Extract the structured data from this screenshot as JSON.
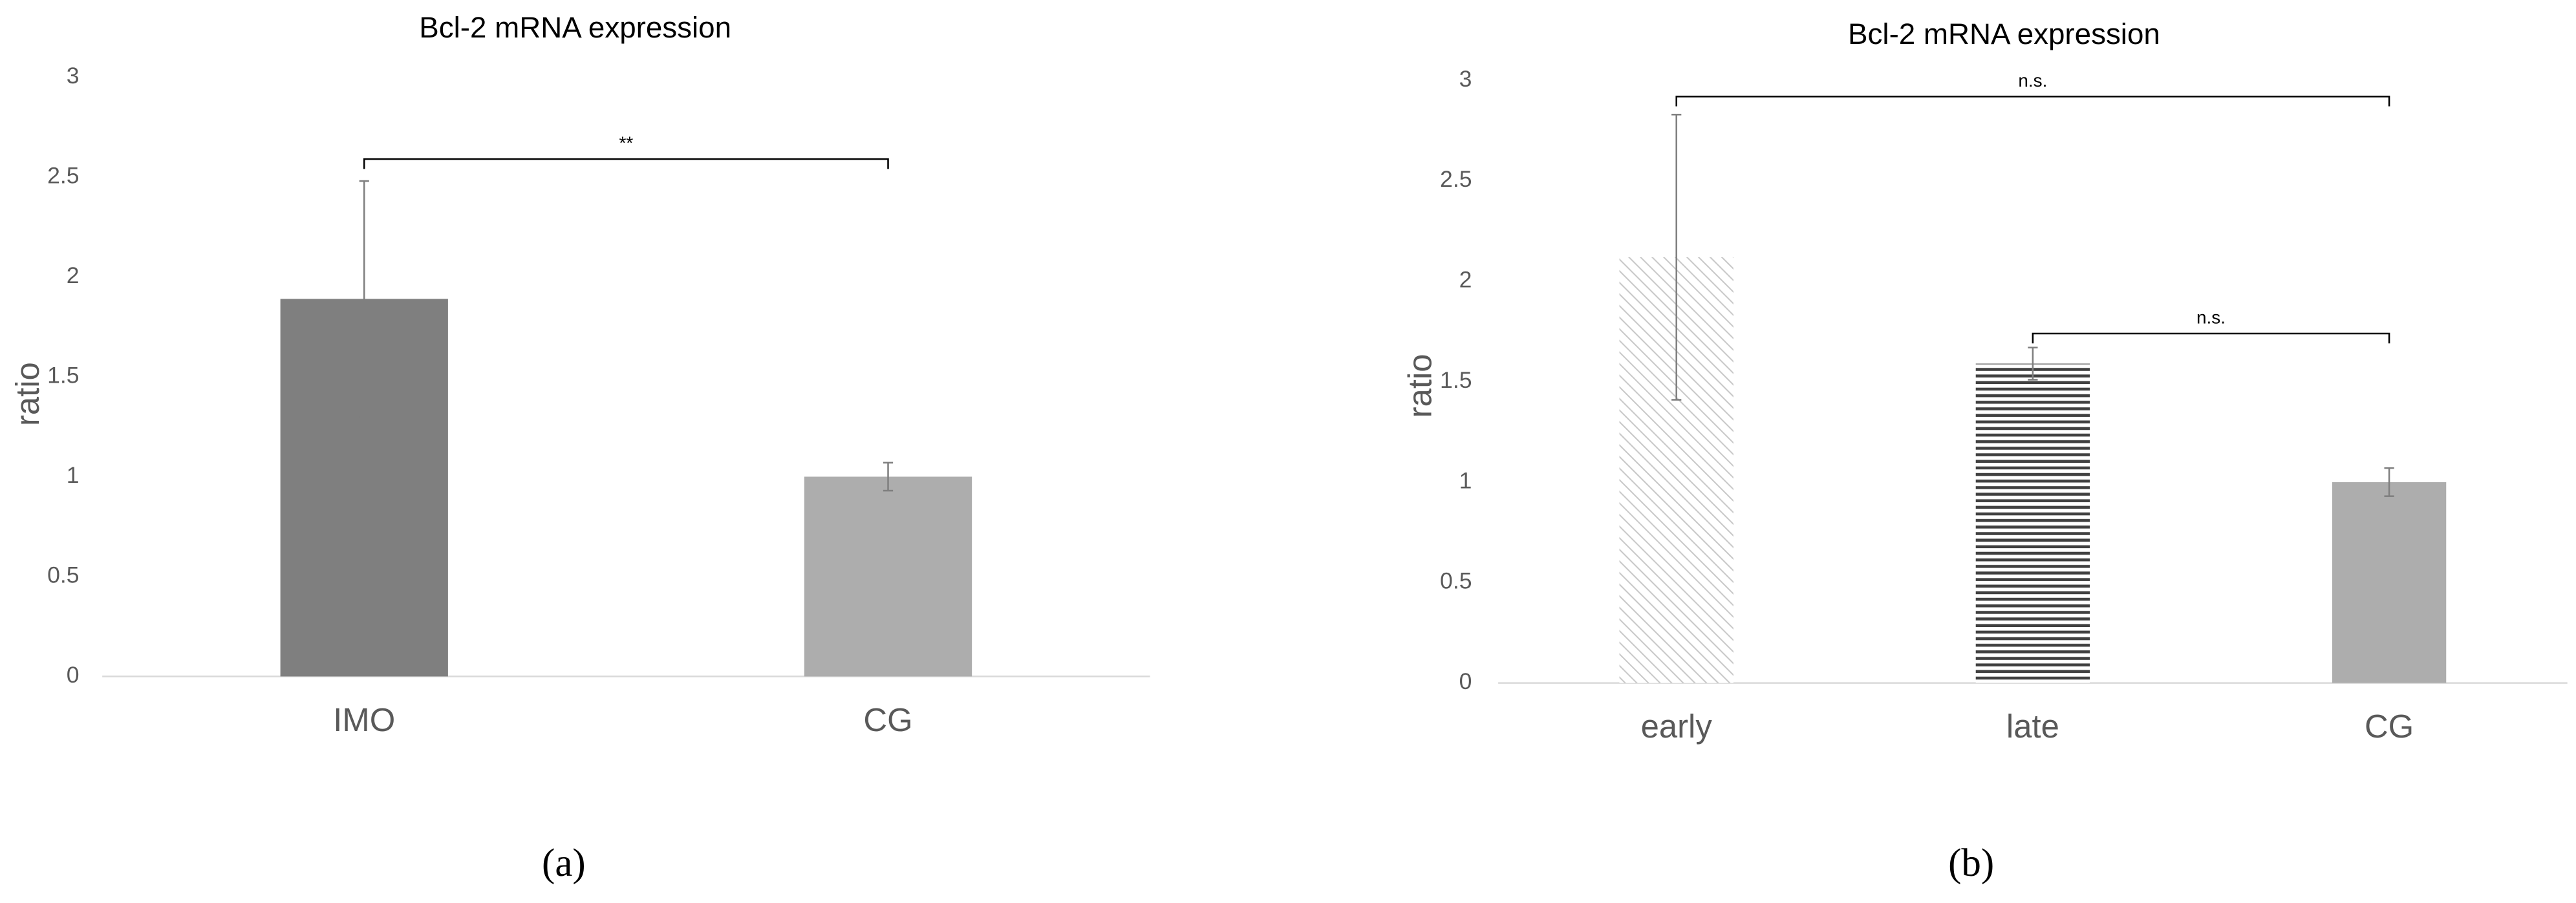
{
  "chart_data": [
    {
      "type": "bar",
      "title": "Bcl-2 mRNA expression",
      "ylabel": "ratio",
      "panel_label": "(a)",
      "categories": [
        "IMO",
        "CG"
      ],
      "values": [
        1.89,
        1.0
      ],
      "errors": [
        0.59,
        0.07
      ],
      "colors": [
        "#7f7f7f",
        "#adadad"
      ],
      "patterns": [
        "solid",
        "solid"
      ],
      "ylim": [
        0,
        3
      ],
      "yticks": [
        0,
        0.5,
        1,
        1.5,
        2,
        2.5,
        3
      ],
      "significance": [
        {
          "from": 0,
          "to": 1,
          "y": 2.59,
          "label": "**"
        }
      ]
    },
    {
      "type": "bar",
      "title": "Bcl-2 mRNA expression",
      "ylabel": "ratio",
      "panel_label": "(b)",
      "categories": [
        "early",
        "late",
        "CG"
      ],
      "values": [
        2.12,
        1.59,
        1.0
      ],
      "errors": [
        0.71,
        0.08,
        0.07
      ],
      "colors": [
        "#c8c8c8",
        "#404040",
        "#adadad"
      ],
      "patterns": [
        "diagonal",
        "horizontal",
        "solid"
      ],
      "ylim": [
        0,
        3
      ],
      "yticks": [
        0,
        0.5,
        1,
        1.5,
        2,
        2.5,
        3
      ],
      "significance": [
        {
          "from": 0,
          "to": 2,
          "y": 2.92,
          "label": "n.s."
        },
        {
          "from": 1,
          "to": 2,
          "y": 1.74,
          "label": "n.s."
        }
      ]
    }
  ]
}
